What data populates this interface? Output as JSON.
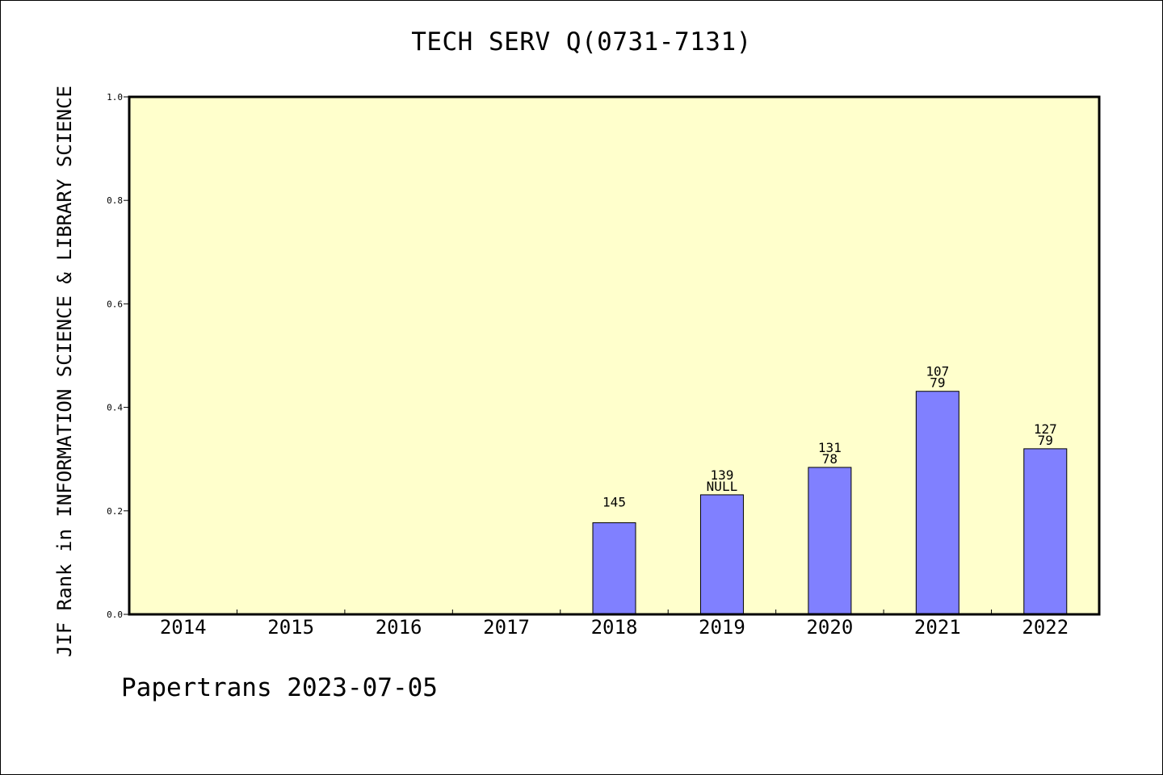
{
  "page": {
    "title": "TECH SERV Q(0731-7131)",
    "footer": "Papertrans 2023-07-05"
  },
  "colors": {
    "plot_background": "#ffffcc",
    "bar_fill": "#8080ff",
    "bar_stroke": "#000000"
  },
  "chart_data": {
    "type": "bar",
    "title": "TECH SERV Q(0731-7131)",
    "xlabel": "",
    "ylabel": "JIF Rank in INFORMATION SCIENCE & LIBRARY SCIENCE",
    "ylim": [
      0,
      1.0
    ],
    "yticks": [
      "0.0",
      "0.2",
      "0.4",
      "0.6",
      "0.8",
      "1.0"
    ],
    "grid": false,
    "categories": [
      "2014",
      "2015",
      "2016",
      "2017",
      "2018",
      "2019",
      "2020",
      "2021",
      "2022"
    ],
    "values": [
      null,
      null,
      null,
      null,
      0.177,
      0.231,
      0.284,
      0.431,
      0.32
    ],
    "label_top": [
      null,
      null,
      null,
      null,
      null,
      "139",
      "131",
      "107",
      "127"
    ],
    "label_bottom": [
      null,
      null,
      null,
      null,
      "145",
      "NULL",
      "78",
      "79",
      "79"
    ]
  }
}
